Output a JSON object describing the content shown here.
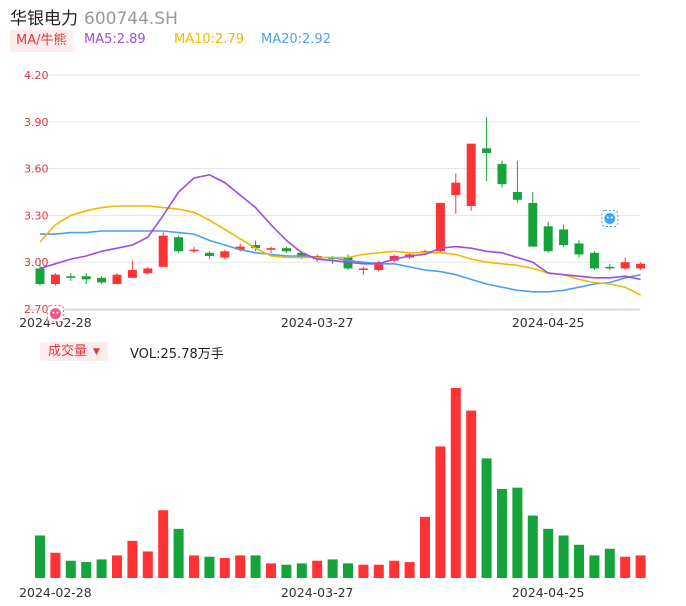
{
  "header": {
    "name": "华银电力",
    "code": "600744.SH",
    "ma_button": "MA/牛熊",
    "ma5": "MA5:2.89",
    "ma10": "MA10:2.79",
    "ma20": "MA20:2.92"
  },
  "volume_panel": {
    "button": "成交量",
    "caret": "▼",
    "text": "VOL:25.78万手"
  },
  "colors": {
    "up": "#ff3333",
    "down": "#14a43a",
    "ma5": "#a14be0",
    "ma10": "#f5b800",
    "ma20": "#4d9ff0",
    "axis_label": "#e0393e",
    "grid": "#e5e5e5"
  },
  "markers": [
    {
      "type": "bear-marker",
      "index": 1,
      "price": 2.67
    },
    {
      "type": "bull-marker",
      "index": 37,
      "price": 3.28
    }
  ],
  "chart_data": {
    "type": "candlestick",
    "yticks": [
      "4.20",
      "3.90",
      "3.60",
      "3.30",
      "3.00",
      "2.70"
    ],
    "ylim": [
      2.7,
      4.2
    ],
    "xtick_labels": [
      {
        "index": 1,
        "label": "2024-02-28"
      },
      {
        "index": 18,
        "label": "2024-03-27"
      },
      {
        "index": 33,
        "label": "2024-04-25"
      }
    ],
    "candles": [
      {
        "o": 2.96,
        "h": 3.0,
        "l": 2.85,
        "c": 2.86
      },
      {
        "o": 2.86,
        "h": 2.93,
        "l": 2.85,
        "c": 2.92
      },
      {
        "o": 2.91,
        "h": 2.93,
        "l": 2.88,
        "c": 2.9
      },
      {
        "o": 2.91,
        "h": 2.93,
        "l": 2.86,
        "c": 2.89
      },
      {
        "o": 2.9,
        "h": 2.91,
        "l": 2.86,
        "c": 2.87
      },
      {
        "o": 2.86,
        "h": 2.93,
        "l": 2.86,
        "c": 2.92
      },
      {
        "o": 2.9,
        "h": 3.01,
        "l": 2.9,
        "c": 2.95
      },
      {
        "o": 2.93,
        "h": 2.97,
        "l": 2.92,
        "c": 2.96
      },
      {
        "o": 2.97,
        "h": 3.19,
        "l": 2.97,
        "c": 3.17
      },
      {
        "o": 3.16,
        "h": 3.17,
        "l": 3.06,
        "c": 3.07
      },
      {
        "o": 3.07,
        "h": 3.1,
        "l": 3.06,
        "c": 3.08
      },
      {
        "o": 3.06,
        "h": 3.07,
        "l": 3.02,
        "c": 3.04
      },
      {
        "o": 3.03,
        "h": 3.08,
        "l": 3.02,
        "c": 3.07
      },
      {
        "o": 3.08,
        "h": 3.12,
        "l": 3.07,
        "c": 3.1
      },
      {
        "o": 3.11,
        "h": 3.14,
        "l": 3.07,
        "c": 3.09
      },
      {
        "o": 3.08,
        "h": 3.1,
        "l": 3.06,
        "c": 3.09
      },
      {
        "o": 3.09,
        "h": 3.1,
        "l": 3.06,
        "c": 3.07
      },
      {
        "o": 3.06,
        "h": 3.07,
        "l": 3.02,
        "c": 3.03
      },
      {
        "o": 3.02,
        "h": 3.05,
        "l": 3.0,
        "c": 3.04
      },
      {
        "o": 3.03,
        "h": 3.04,
        "l": 2.99,
        "c": 3.02
      },
      {
        "o": 3.03,
        "h": 3.05,
        "l": 2.95,
        "c": 2.96
      },
      {
        "o": 2.95,
        "h": 2.97,
        "l": 2.92,
        "c": 2.96
      },
      {
        "o": 2.95,
        "h": 3.01,
        "l": 2.94,
        "c": 3.0
      },
      {
        "o": 3.01,
        "h": 3.05,
        "l": 3.0,
        "c": 3.04
      },
      {
        "o": 3.03,
        "h": 3.06,
        "l": 3.02,
        "c": 3.05
      },
      {
        "o": 3.06,
        "h": 3.08,
        "l": 3.05,
        "c": 3.07
      },
      {
        "o": 3.07,
        "h": 3.38,
        "l": 3.06,
        "c": 3.38
      },
      {
        "o": 3.43,
        "h": 3.57,
        "l": 3.31,
        "c": 3.51
      },
      {
        "o": 3.36,
        "h": 3.76,
        "l": 3.33,
        "c": 3.76
      },
      {
        "o": 3.73,
        "h": 3.93,
        "l": 3.52,
        "c": 3.7
      },
      {
        "o": 3.63,
        "h": 3.65,
        "l": 3.48,
        "c": 3.5
      },
      {
        "o": 3.45,
        "h": 3.65,
        "l": 3.38,
        "c": 3.4
      },
      {
        "o": 3.38,
        "h": 3.45,
        "l": 3.1,
        "c": 3.1
      },
      {
        "o": 3.23,
        "h": 3.26,
        "l": 3.06,
        "c": 3.07
      },
      {
        "o": 3.21,
        "h": 3.24,
        "l": 3.1,
        "c": 3.11
      },
      {
        "o": 3.12,
        "h": 3.14,
        "l": 3.03,
        "c": 3.05
      },
      {
        "o": 3.06,
        "h": 3.07,
        "l": 2.95,
        "c": 2.96
      },
      {
        "o": 2.97,
        "h": 2.99,
        "l": 2.95,
        "c": 2.96
      },
      {
        "o": 2.96,
        "h": 3.03,
        "l": 2.95,
        "c": 3.0
      },
      {
        "o": 2.96,
        "h": 3.0,
        "l": 2.95,
        "c": 2.99
      }
    ],
    "ma5": [
      2.96,
      2.99,
      3.02,
      3.04,
      3.07,
      3.09,
      3.11,
      3.16,
      3.3,
      3.45,
      3.54,
      3.56,
      3.51,
      3.43,
      3.35,
      3.24,
      3.14,
      3.06,
      3.02,
      3.01,
      3.0,
      2.99,
      2.99,
      3.02,
      3.04,
      3.05,
      3.09,
      3.1,
      3.09,
      3.07,
      3.06,
      3.03,
      3.0,
      2.93,
      2.92,
      2.91,
      2.9,
      2.9,
      2.91,
      2.89
    ],
    "ma10": [
      3.13,
      3.24,
      3.3,
      3.33,
      3.35,
      3.36,
      3.36,
      3.36,
      3.35,
      3.34,
      3.32,
      3.27,
      3.21,
      3.15,
      3.09,
      3.04,
      3.03,
      3.03,
      3.03,
      3.03,
      3.03,
      3.05,
      3.06,
      3.07,
      3.06,
      3.06,
      3.06,
      3.05,
      3.02,
      3.0,
      2.99,
      2.98,
      2.96,
      2.93,
      2.92,
      2.89,
      2.87,
      2.86,
      2.84,
      2.79
    ],
    "ma20": [
      3.18,
      3.18,
      3.19,
      3.19,
      3.2,
      3.2,
      3.2,
      3.2,
      3.2,
      3.19,
      3.18,
      3.14,
      3.11,
      3.08,
      3.06,
      3.05,
      3.04,
      3.04,
      3.03,
      3.03,
      3.01,
      3.0,
      2.99,
      2.99,
      2.97,
      2.95,
      2.94,
      2.92,
      2.89,
      2.86,
      2.84,
      2.82,
      2.81,
      2.81,
      2.82,
      2.84,
      2.86,
      2.87,
      2.9,
      2.92
    ],
    "volume": [
      0.32,
      0.19,
      0.13,
      0.12,
      0.14,
      0.17,
      0.28,
      0.2,
      0.51,
      0.37,
      0.17,
      0.16,
      0.15,
      0.17,
      0.17,
      0.11,
      0.1,
      0.11,
      0.13,
      0.14,
      0.11,
      0.1,
      0.1,
      0.13,
      0.12,
      0.46,
      0.99,
      1.43,
      1.26,
      0.9,
      0.67,
      0.68,
      0.47,
      0.37,
      0.32,
      0.25,
      0.17,
      0.22,
      0.16,
      0.17
    ],
    "volume_max": 1.43
  }
}
